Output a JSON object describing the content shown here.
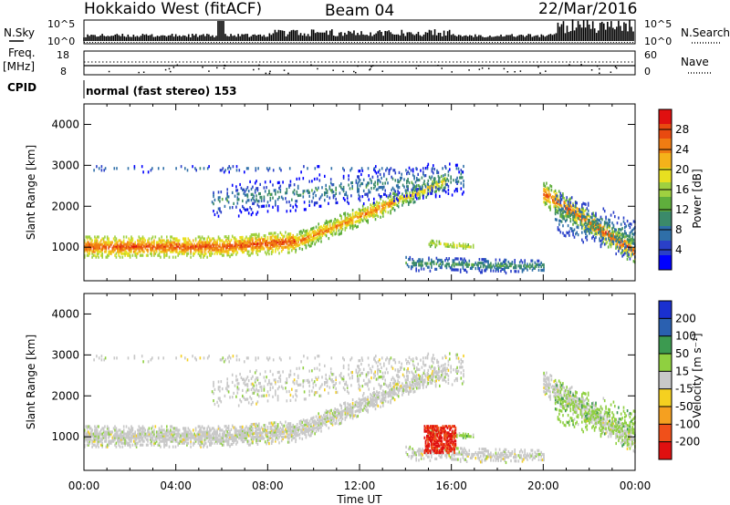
{
  "header": {
    "station": "Hokkaido West (fitACF)",
    "beam": "Beam 04",
    "date": "22/Mar/2016"
  },
  "noise_panel": {
    "left_label": "N.Sky",
    "right_label": "N.Search",
    "left_ticks": [
      "10^5",
      "10^0"
    ],
    "right_ticks": [
      "10^5",
      "10^0"
    ]
  },
  "freq_panel": {
    "left_label_1": "Freq.",
    "left_label_2": "[MHz]",
    "left_ticks": [
      "18",
      "8"
    ],
    "right_label": "Nave",
    "right_ticks": [
      "60",
      "0"
    ]
  },
  "cpid": {
    "label": "CPID",
    "text": "normal (fast stereo) 153"
  },
  "chart_data": [
    {
      "type": "heatmap",
      "title": "Power",
      "ylabel": "Slant Range [km]",
      "xlabel": "",
      "ylim": [
        180,
        4500
      ],
      "xlim": [
        0,
        24
      ],
      "y_ticks": [
        "1000",
        "2000",
        "3000",
        "4000"
      ],
      "x_ticks": [
        "00:00",
        "04:00",
        "08:00",
        "12:00",
        "16:00",
        "20:00",
        "00:00"
      ],
      "colorbar": {
        "label": "Power [dB]",
        "ticks": [
          "28",
          "24",
          "20",
          "16",
          "12",
          "8",
          "4"
        ],
        "range": [
          0,
          30
        ]
      },
      "grid": false
    },
    {
      "type": "heatmap",
      "title": "Velocity",
      "ylabel": "Slant Range [km]",
      "xlabel": "Time UT",
      "ylim": [
        180,
        4500
      ],
      "xlim": [
        0,
        24
      ],
      "y_ticks": [
        "1000",
        "2000",
        "3000",
        "4000"
      ],
      "x_ticks": [
        "00:00",
        "04:00",
        "08:00",
        "12:00",
        "16:00",
        "20:00",
        "00:00"
      ],
      "colorbar": {
        "label": "Velocity [m s⁻¹]",
        "ticks": [
          "200",
          "100",
          "50",
          "15",
          "-15",
          "-50",
          "-100",
          "-200"
        ],
        "range": [
          -250,
          250
        ]
      },
      "grid": false
    }
  ],
  "colors": {
    "power_scale": [
      "#0000ff",
      "#2a40c8",
      "#2f6fa8",
      "#3b8a6a",
      "#5fae3c",
      "#9fd040",
      "#e8e020",
      "#f5b21a",
      "#f07c12",
      "#e84a10",
      "#e01010"
    ],
    "velocity_scale": [
      "#e01010",
      "#f0501a",
      "#f5a020",
      "#f5d020",
      "#c8c8c8",
      "#8fd040",
      "#3c9a50",
      "#2a60b0",
      "#1a30d0"
    ]
  }
}
